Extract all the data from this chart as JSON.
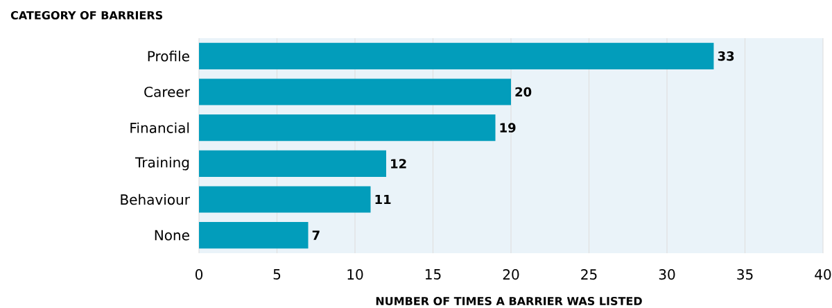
{
  "chart_data": {
    "type": "bar",
    "orientation": "horizontal",
    "ylabel": "CATEGORY OF BARRIERS",
    "xlabel": "NUMBER OF TIMES A BARRIER WAS LISTED",
    "categories": [
      "Profile",
      "Career",
      "Financial",
      "Training",
      "Behaviour",
      "None"
    ],
    "values": [
      33,
      20,
      19,
      12,
      11,
      7
    ],
    "color": "#029dbb",
    "xlim": [
      0,
      40
    ],
    "xticks": [
      0,
      5,
      10,
      15,
      20,
      25,
      30,
      35,
      40
    ],
    "grid": "x",
    "data_labels": true
  }
}
